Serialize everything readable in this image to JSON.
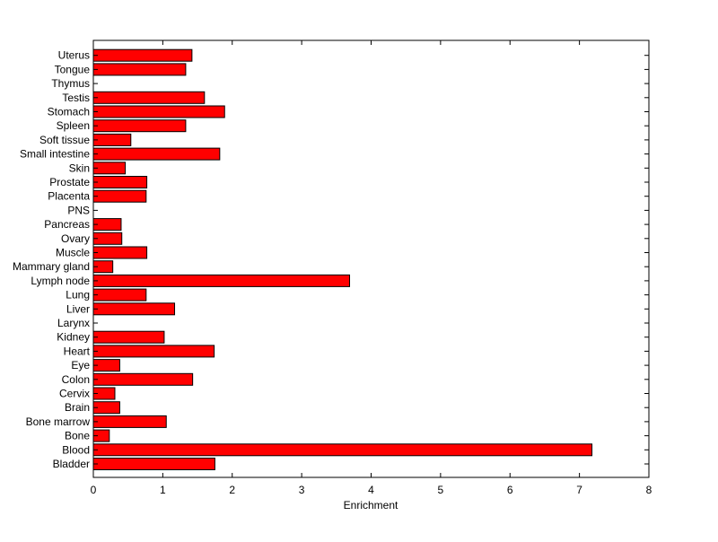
{
  "chart_data": {
    "type": "bar",
    "orientation": "horizontal",
    "title": "",
    "xlabel": "Enrichment",
    "ylabel": "",
    "xlim": [
      0,
      8
    ],
    "xticks": [
      0,
      1,
      2,
      3,
      4,
      5,
      6,
      7,
      8
    ],
    "grid": false,
    "categories": [
      "Bladder",
      "Blood",
      "Bone",
      "Bone marrow",
      "Brain",
      "Cervix",
      "Colon",
      "Eye",
      "Heart",
      "Kidney",
      "Larynx",
      "Liver",
      "Lung",
      "Lymph node",
      "Mammary gland",
      "Muscle",
      "Ovary",
      "Pancreas",
      "PNS",
      "Placenta",
      "Prostate",
      "Skin",
      "Small intestine",
      "Soft tissue",
      "Spleen",
      "Stomach",
      "Testis",
      "Thymus",
      "Tongue",
      "Uterus"
    ],
    "values": [
      1.75,
      7.18,
      0.23,
      1.05,
      0.38,
      0.31,
      1.43,
      0.38,
      1.74,
      1.02,
      0,
      1.17,
      0.76,
      3.69,
      0.28,
      0.77,
      0.41,
      0.4,
      0,
      0.76,
      0.77,
      0.46,
      1.82,
      0.54,
      1.33,
      1.89,
      1.6,
      0,
      1.33,
      1.42
    ],
    "bar_color": "#ff0000",
    "edge_color": "#000000"
  }
}
